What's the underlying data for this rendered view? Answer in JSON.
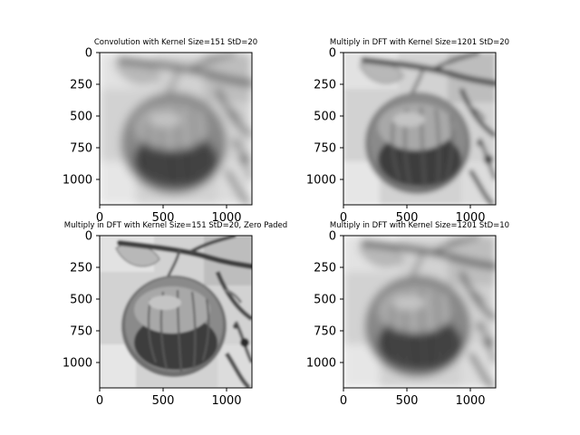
{
  "figure": {
    "panels": [
      {
        "title": "Convolution with Kernel Size=151 StD=20",
        "blur": 5.0,
        "chart_data": {
          "type": "heatmap",
          "colormap": "gray",
          "title": "Convolution with Kernel Size=151 StD=20",
          "xlim": [
            0,
            1200
          ],
          "ylim": [
            1200,
            0
          ],
          "xticks": [
            0,
            500,
            1000
          ],
          "yticks": [
            0,
            250,
            500,
            750,
            1000
          ],
          "xtick_labels": [
            "0",
            "500",
            "1000"
          ],
          "ytick_labels": [
            "0",
            "250",
            "500",
            "750",
            "1000"
          ],
          "grid": false
        }
      },
      {
        "title": "Multiply in DFT with Kernel Size=1201 StD=20",
        "blur": 2.6,
        "chart_data": {
          "type": "heatmap",
          "colormap": "gray",
          "title": "Multiply in DFT with Kernel Size=1201 StD=20",
          "xlim": [
            0,
            1200
          ],
          "ylim": [
            1200,
            0
          ],
          "xticks": [
            0,
            500,
            1000
          ],
          "yticks": [
            0,
            250,
            500,
            750,
            1000
          ],
          "xtick_labels": [
            "0",
            "500",
            "1000"
          ],
          "ytick_labels": [
            "0",
            "250",
            "500",
            "750",
            "1000"
          ],
          "grid": false
        }
      },
      {
        "title": "Multiply in DFT with Kernel Size=151 StD=20, Zero Paded",
        "blur": 1.4,
        "chart_data": {
          "type": "heatmap",
          "colormap": "gray",
          "title": "Multiply in DFT with Kernel Size=151 StD=20, Zero Paded",
          "xlim": [
            0,
            1200
          ],
          "ylim": [
            1200,
            0
          ],
          "xticks": [
            0,
            500,
            1000
          ],
          "yticks": [
            0,
            250,
            500,
            750,
            1000
          ],
          "xtick_labels": [
            "0",
            "500",
            "1000"
          ],
          "ytick_labels": [
            "0",
            "250",
            "500",
            "750",
            "1000"
          ],
          "grid": false
        }
      },
      {
        "title": "Multiply in DFT with Kernel Size=1201 StD=10",
        "blur": 4.4,
        "chart_data": {
          "type": "heatmap",
          "colormap": "gray",
          "title": "Multiply in DFT with Kernel Size=1201 StD=10",
          "xlim": [
            0,
            1200
          ],
          "ylim": [
            1200,
            0
          ],
          "xticks": [
            0,
            500,
            1000
          ],
          "yticks": [
            0,
            250,
            500,
            750,
            1000
          ],
          "xtick_labels": [
            "0",
            "500",
            "1000"
          ],
          "ytick_labels": [
            "0",
            "250",
            "500",
            "750",
            "1000"
          ],
          "grid": false
        }
      }
    ]
  }
}
